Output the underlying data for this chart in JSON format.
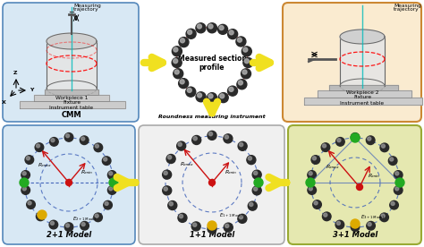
{
  "panel_top_left_bg": "#d8e8f4",
  "panel_top_right_bg": "#faebd0",
  "panel_bot_left_bg": "#d8e8f4",
  "panel_bot_mid_bg": "#f0f0f0",
  "panel_bot_right_bg": "#e5e8b0",
  "panel_top_left_ec": "#5588bb",
  "panel_top_right_ec": "#cc8833",
  "panel_bot_left_ec": "#5588bb",
  "panel_bot_mid_ec": "#aaaaaa",
  "panel_bot_right_ec": "#99aa33",
  "arrow_color": "#f0e020",
  "arrow_ec": "#c8b800",
  "center_color": "#cc1111",
  "green_color": "#22aa22",
  "yellow_color": "#ddaa00",
  "circle_color": "#4466bb",
  "dot_dark": "#2a2a2a",
  "dot_light": "#909090",
  "red_line": "#cc1111",
  "cyan_line": "#00cccc",
  "label_cmm": "CMM",
  "label_rmi": "Roundness measuring instrument",
  "label_measured": "Measured section\nprofile",
  "label_traj1": "Measuring\ntrajectory",
  "label_traj2": "Measuring\ntrajectory",
  "label_wp1": "Workpiece 1",
  "label_fix1": "Fixture",
  "label_it1": "Instrument table",
  "label_wp2": "Workpiece 2",
  "label_fix2": "Fixture",
  "label_it2": "Instrument table",
  "label_m21": "2+1 Model",
  "label_m11": "1+1 Model",
  "label_m31": "3+1 Model"
}
